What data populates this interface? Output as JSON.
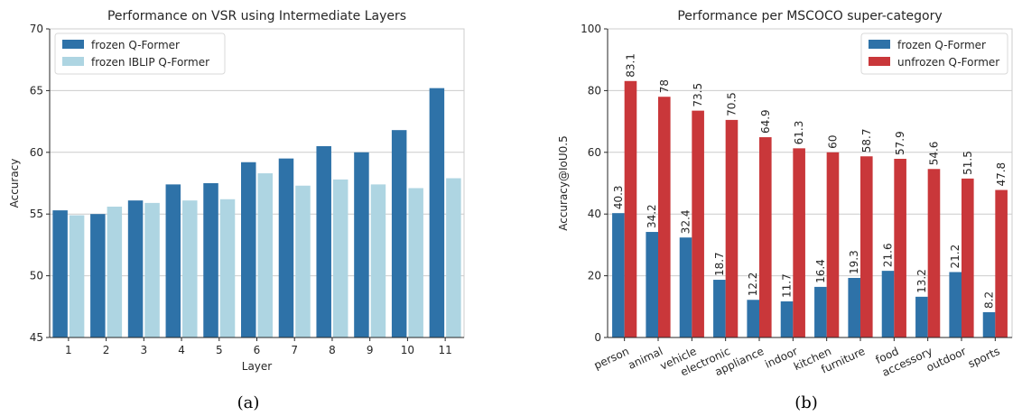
{
  "chart_data": [
    {
      "type": "bar",
      "title": "Performance on VSR using Intermediate Layers",
      "xlabel": "Layer",
      "ylabel": "Accuracy",
      "ylim": [
        45,
        70
      ],
      "yticks": [
        45,
        50,
        55,
        60,
        65,
        70
      ],
      "grid": "horizontal",
      "legend_position": "top-left",
      "categories": [
        "1",
        "2",
        "3",
        "4",
        "5",
        "6",
        "7",
        "8",
        "9",
        "10",
        "11"
      ],
      "series": [
        {
          "name": "frozen Q-Former",
          "color": "#2e72a8",
          "values": [
            55.3,
            55.0,
            56.1,
            57.4,
            57.5,
            59.2,
            59.5,
            60.5,
            60.0,
            61.8,
            65.2
          ]
        },
        {
          "name": "frozen IBLIP Q-Former",
          "color": "#aed5e2",
          "values": [
            54.9,
            55.6,
            55.9,
            56.1,
            56.2,
            58.3,
            57.3,
            57.8,
            57.4,
            57.1,
            57.9
          ]
        }
      ],
      "caption": "(a)"
    },
    {
      "type": "bar",
      "title": "Performance per MSCOCO super-category",
      "xlabel": "",
      "ylabel": "Accuracy@IoU0.5",
      "ylim": [
        0,
        100
      ],
      "yticks": [
        0,
        20,
        40,
        60,
        80,
        100
      ],
      "grid": "horizontal",
      "legend_position": "top-right",
      "categories": [
        "person",
        "animal",
        "vehicle",
        "electronic",
        "appliance",
        "indoor",
        "kitchen",
        "furniture",
        "food",
        "accessory",
        "outdoor",
        "sports"
      ],
      "series": [
        {
          "name": "frozen Q-Former",
          "color": "#2e72a8",
          "values": [
            40.3,
            34.2,
            32.4,
            18.7,
            12.2,
            11.7,
            16.4,
            19.3,
            21.6,
            13.2,
            21.2,
            8.2
          ]
        },
        {
          "name": "unfrozen Q-Former",
          "color": "#c9373a",
          "values": [
            83.1,
            78.0,
            73.5,
            70.5,
            64.9,
            61.3,
            60.0,
            58.7,
            57.9,
            54.6,
            51.5,
            47.8
          ]
        }
      ],
      "data_labels": true,
      "caption": "(b)"
    }
  ]
}
